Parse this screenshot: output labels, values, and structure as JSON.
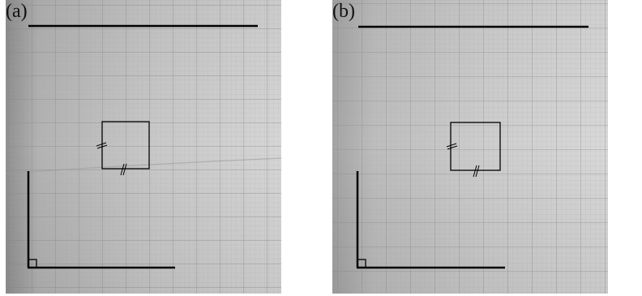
{
  "panels": [
    {
      "label": "(a)"
    },
    {
      "label": "(b)"
    }
  ],
  "colors": {
    "paper_light": "#d4d4d4",
    "paper_dark": "#9a9a9a",
    "grid_minor": "#b0b0b0",
    "grid_major": "#8c8c8c",
    "ink": "#000000"
  },
  "figure": {
    "shapes": [
      "horizontal-line",
      "square-with-equal-side-ticks",
      "right-angle-corner"
    ]
  }
}
